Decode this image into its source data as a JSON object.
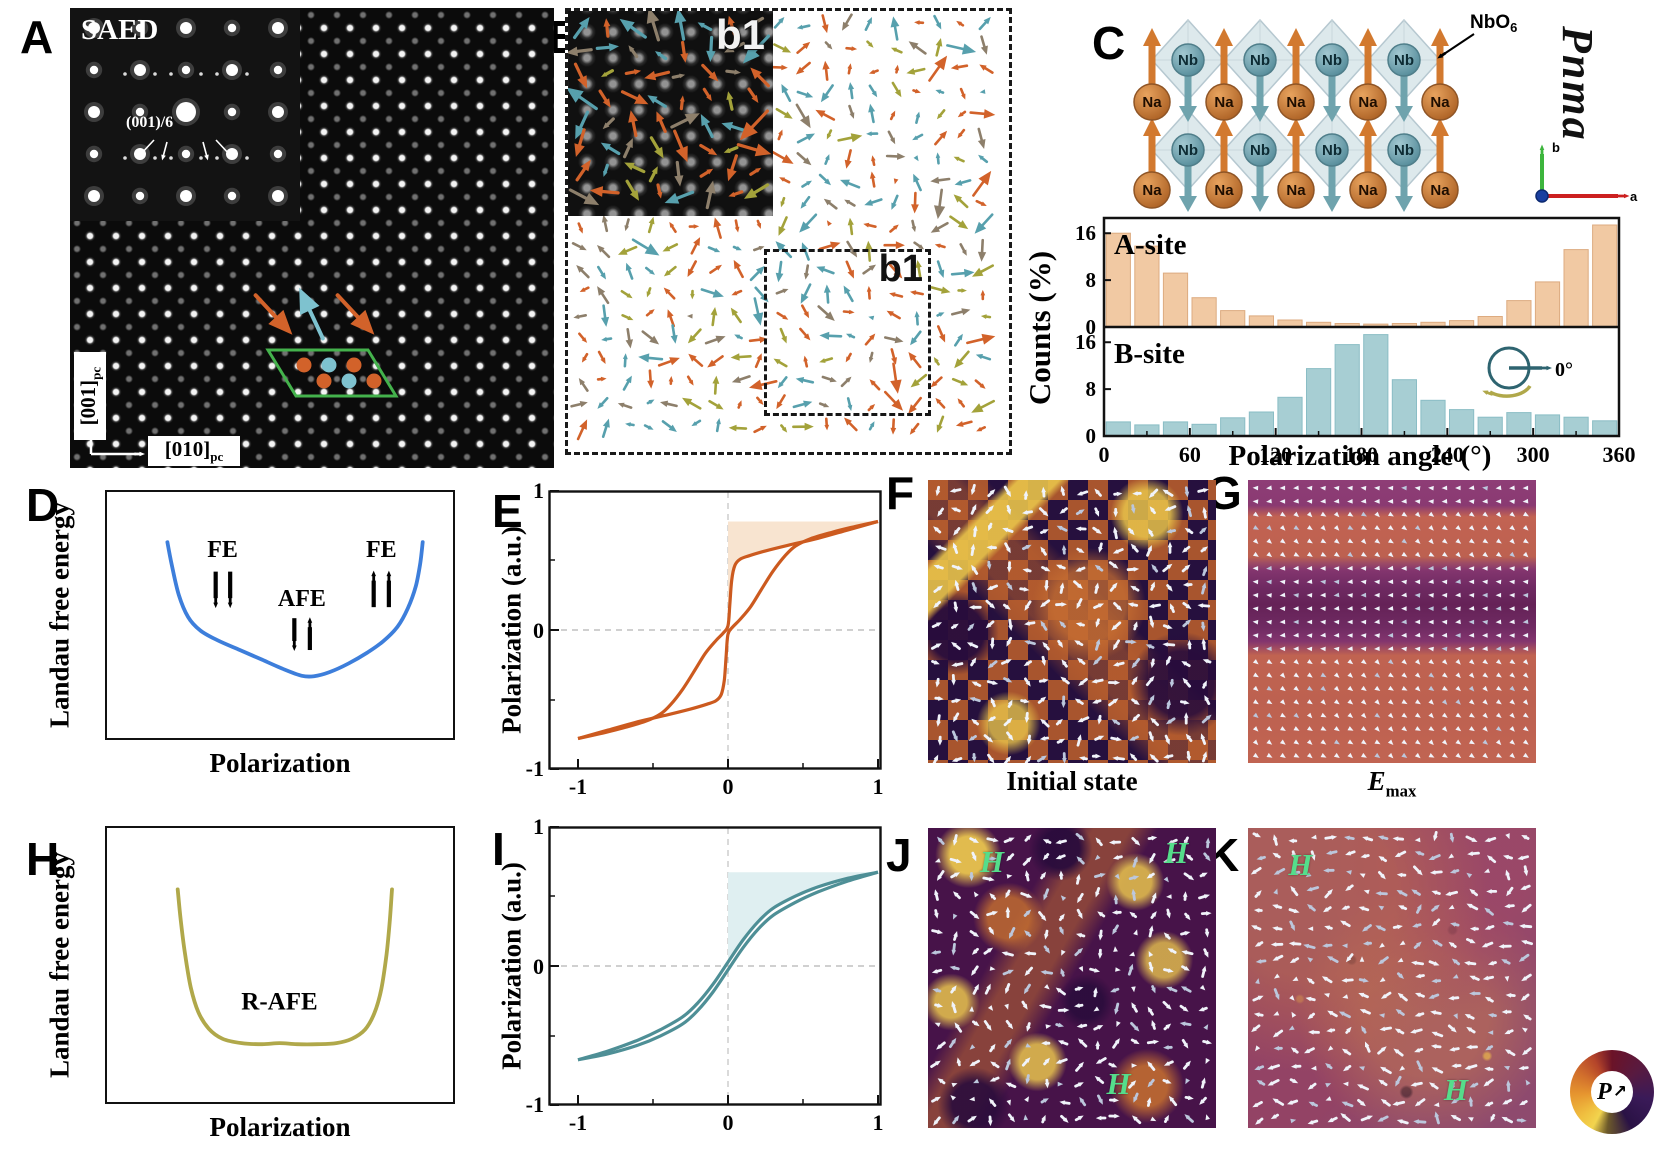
{
  "panels": {
    "a": {
      "label": "A",
      "saed": "SAED",
      "reflection": "(001)/6",
      "axis_v": {
        "text": "[001]",
        "sub": "pc"
      },
      "axis_h": {
        "text": "[010]",
        "sub": "pc"
      }
    },
    "b": {
      "label": "B",
      "inset_label": "b1",
      "box_label": "b1"
    },
    "c": {
      "label": "C",
      "atom_a": "Na",
      "atom_b": "Nb",
      "octahedron": {
        "text": "NbO",
        "sub": "6"
      },
      "space_group": "Pnma",
      "axis_a": "a",
      "axis_b": "b"
    },
    "d": {
      "label": "D"
    },
    "e": {
      "label": "E",
      "ylabel": "Polarization (a.u.)",
      "yticks": [
        "1",
        "0",
        "-1"
      ],
      "xticks": [
        "-1",
        "0",
        "1"
      ]
    },
    "f": {
      "label": "F",
      "caption": "Initial state"
    },
    "g": {
      "label": "G",
      "caption": {
        "text": "E",
        "sub": "max"
      }
    },
    "h": {
      "label": "H"
    },
    "i": {
      "label": "I",
      "ylabel": "Polarization (a.u.)",
      "yticks": [
        "1",
        "0",
        "-1"
      ],
      "xticks": [
        "-1",
        "0",
        "1"
      ]
    },
    "j": {
      "label": "J",
      "field_labels": [
        "H",
        "H",
        "H"
      ]
    },
    "k": {
      "label": "K",
      "field_labels": [
        "H",
        "H"
      ]
    },
    "wheel": {
      "label": "P",
      "arrow": "↗"
    }
  },
  "palette": {
    "vector_colors": [
      "#d2622a",
      "#57a0ad",
      "#a3a23a",
      "#8d7f6b"
    ],
    "field_arrow_light": "#f0f3fa",
    "field_arrow_dim": "#bcc7dc",
    "unit_cell_green": "#44b24c",
    "atom_orange": "#d2622a",
    "atom_cyan": "#7ec2cf"
  },
  "chart_data": [
    {
      "id": "a_site",
      "type": "bar",
      "title": "A-site",
      "ylabel": "Counts (%)",
      "xlabel": "Polarization angle (°)",
      "bin_start": 0,
      "bin_width": 20,
      "values": [
        16.0,
        13.8,
        9.2,
        5.0,
        2.8,
        1.9,
        1.2,
        0.8,
        0.6,
        0.5,
        0.6,
        0.8,
        1.1,
        1.8,
        4.5,
        7.7,
        13.2,
        17.4
      ],
      "yticks": [
        0,
        8,
        16
      ],
      "xticks": [
        0,
        60,
        120,
        180,
        240,
        300,
        360
      ],
      "ylim": [
        0,
        18.6
      ],
      "bar_color": "#f1c9a3",
      "bar_edge": "#ddab80"
    },
    {
      "id": "b_site",
      "type": "bar",
      "title": "B-site",
      "ylabel": "Counts (%)",
      "xlabel": "Polarization angle (°)",
      "bin_start": 0,
      "bin_width": 20,
      "values": [
        2.4,
        1.9,
        2.4,
        2.0,
        3.1,
        4.1,
        6.6,
        11.5,
        15.6,
        17.3,
        9.6,
        6.1,
        4.5,
        3.2,
        4.0,
        3.6,
        3.2,
        2.6
      ],
      "yticks": [
        0,
        8,
        16
      ],
      "xticks": [
        0,
        60,
        120,
        180,
        240,
        300,
        360
      ],
      "ylim": [
        0,
        18.6
      ],
      "bar_color": "#a7ced3",
      "bar_edge": "#8abdc5",
      "icon_label": "0°"
    },
    {
      "id": "landau_afe",
      "type": "line",
      "color": "#3d7edb",
      "xlabel": "Polarization",
      "ylabel": "Landau free energy",
      "points": [
        [
          0.175,
          0.205
        ],
        [
          0.188,
          0.3
        ],
        [
          0.208,
          0.42
        ],
        [
          0.235,
          0.51
        ],
        [
          0.27,
          0.565
        ],
        [
          0.32,
          0.605
        ],
        [
          0.385,
          0.645
        ],
        [
          0.45,
          0.685
        ],
        [
          0.515,
          0.725
        ],
        [
          0.565,
          0.75
        ],
        [
          0.6,
          0.752
        ],
        [
          0.645,
          0.735
        ],
        [
          0.7,
          0.7
        ],
        [
          0.755,
          0.655
        ],
        [
          0.8,
          0.61
        ],
        [
          0.842,
          0.55
        ],
        [
          0.872,
          0.475
        ],
        [
          0.895,
          0.385
        ],
        [
          0.908,
          0.29
        ],
        [
          0.915,
          0.205
        ]
      ],
      "annotations": [
        {
          "text": "FE",
          "x": 0.335,
          "y": 0.265,
          "ay": 0.325,
          "alen": 0.145,
          "arrows": [
            {
              "x": 0.315,
              "dir": "down"
            },
            {
              "x": 0.357,
              "dir": "down"
            }
          ]
        },
        {
          "text": "AFE",
          "x": 0.565,
          "y": 0.465,
          "ay": 0.515,
          "alen": 0.13,
          "arrows": [
            {
              "x": 0.543,
              "dir": "down"
            },
            {
              "x": 0.588,
              "dir": "up"
            }
          ]
        },
        {
          "text": "FE",
          "x": 0.795,
          "y": 0.265,
          "ay": 0.325,
          "alen": 0.145,
          "arrows": [
            {
              "x": 0.773,
              "dir": "up"
            },
            {
              "x": 0.817,
              "dir": "up"
            }
          ]
        }
      ]
    },
    {
      "id": "pe_loop_afe",
      "type": "line",
      "color": "#cc5a1f",
      "fill": "#f8e3cd",
      "saturation": 0.775,
      "symmetric": true,
      "xticks": [
        -1,
        0,
        1
      ],
      "yticks": [
        -1,
        0,
        1
      ],
      "branch": [
        [
          -1,
          -0.775
        ],
        [
          -0.85,
          -0.74
        ],
        [
          -0.7,
          -0.7
        ],
        [
          -0.55,
          -0.652
        ],
        [
          -0.45,
          -0.6
        ],
        [
          -0.38,
          -0.53
        ],
        [
          -0.3,
          -0.42
        ],
        [
          -0.22,
          -0.285
        ],
        [
          -0.15,
          -0.165
        ],
        [
          -0.08,
          -0.075
        ],
        [
          -0.03,
          -0.02
        ],
        [
          0.0,
          0.03
        ],
        [
          0.012,
          0.18
        ],
        [
          0.025,
          0.36
        ],
        [
          0.045,
          0.46
        ],
        [
          0.08,
          0.505
        ],
        [
          0.14,
          0.53
        ],
        [
          0.25,
          0.565
        ],
        [
          0.4,
          0.605
        ],
        [
          0.6,
          0.655
        ],
        [
          0.8,
          0.715
        ],
        [
          1.0,
          0.775
        ]
      ]
    },
    {
      "id": "landau_rafe",
      "type": "line",
      "color": "#b0a84a",
      "xlabel": "Polarization",
      "ylabel": "Landau free energy",
      "annotation": {
        "text": "R-AFE",
        "x": 0.5,
        "y": 0.665
      },
      "points": [
        [
          0.205,
          0.225
        ],
        [
          0.213,
          0.33
        ],
        [
          0.226,
          0.46
        ],
        [
          0.243,
          0.585
        ],
        [
          0.265,
          0.675
        ],
        [
          0.295,
          0.735
        ],
        [
          0.335,
          0.772
        ],
        [
          0.39,
          0.788
        ],
        [
          0.45,
          0.792
        ],
        [
          0.5,
          0.788
        ],
        [
          0.55,
          0.792
        ],
        [
          0.61,
          0.792
        ],
        [
          0.665,
          0.788
        ],
        [
          0.71,
          0.772
        ],
        [
          0.748,
          0.738
        ],
        [
          0.775,
          0.678
        ],
        [
          0.795,
          0.59
        ],
        [
          0.81,
          0.465
        ],
        [
          0.82,
          0.335
        ],
        [
          0.826,
          0.225
        ]
      ]
    },
    {
      "id": "pe_loop_rafe",
      "type": "line",
      "color": "#4e8f96",
      "fill": "#ddeef0",
      "saturation": 0.67,
      "loop_gap": 0.028,
      "xticks": [
        -1,
        0,
        1
      ],
      "yticks": [
        -1,
        0,
        1
      ],
      "base": [
        [
          -1,
          -0.67
        ],
        [
          -0.8,
          -0.617
        ],
        [
          -0.6,
          -0.547
        ],
        [
          -0.45,
          -0.477
        ],
        [
          -0.3,
          -0.387
        ],
        [
          -0.2,
          -0.289
        ],
        [
          -0.1,
          -0.158
        ],
        [
          0,
          0.0
        ],
        [
          0.1,
          0.158
        ],
        [
          0.2,
          0.289
        ],
        [
          0.3,
          0.387
        ],
        [
          0.45,
          0.477
        ],
        [
          0.6,
          0.547
        ],
        [
          0.8,
          0.617
        ],
        [
          1,
          0.67
        ]
      ]
    }
  ]
}
